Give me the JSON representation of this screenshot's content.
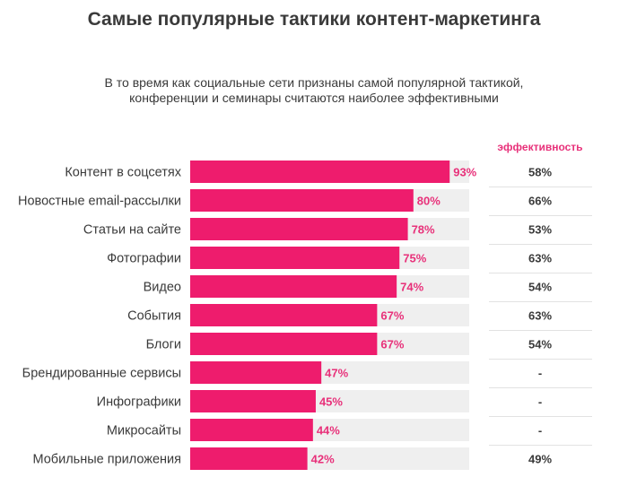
{
  "title": "Самые популярные тактики контент-маркетинга",
  "subtitle_line1": "В то время как социальные сети признаны самой популярной тактикой,",
  "subtitle_line2": "конференции и семинары считаются наиболее эффективными",
  "effectiveness_header": "эффективность",
  "colors": {
    "bar": "#ee1c6d",
    "track": "#efefef",
    "label": "#e8317a",
    "text": "#3a3a3a"
  },
  "chart_data": {
    "type": "bar",
    "orientation": "horizontal",
    "title": "Самые популярные тактики контент-маркетинга",
    "categories": [
      "Контент в соцсетях",
      "Новостные email-рассылки",
      "Статьи на сайте",
      "Фотографии",
      "Видео",
      "События",
      "Блоги",
      "Брендированные сервисы",
      "Инфографики",
      "Микросайты",
      "Мобильные приложения"
    ],
    "values": [
      93,
      80,
      78,
      75,
      74,
      67,
      67,
      47,
      45,
      44,
      42
    ],
    "value_labels": [
      "93%",
      "80%",
      "78%",
      "75%",
      "74%",
      "67%",
      "67%",
      "47%",
      "45%",
      "44%",
      "42%"
    ],
    "effectiveness": [
      "58%",
      "66%",
      "53%",
      "63%",
      "54%",
      "63%",
      "54%",
      "-",
      "-",
      "-",
      "49%"
    ],
    "xlim": [
      0,
      100
    ],
    "unit": "%"
  }
}
